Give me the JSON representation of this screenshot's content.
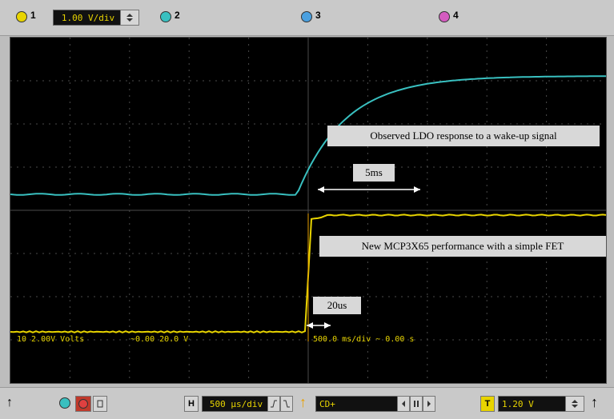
{
  "toolbar": {
    "ch1_scale": "1.00 V/div",
    "ch1_num": "1",
    "ch2_num": "2",
    "ch3_num": "3",
    "ch4_num": "4"
  },
  "screen": {
    "annotation_top": "Observed LDO response to a wake-up signal",
    "annotation_bottom": "New MCP3X65 performance with a simple FET",
    "span_long": "5ms",
    "span_short": "20us",
    "status_left": "10 2.00V Volts",
    "status_mid": "~0.00 20.0 V",
    "status_right": "500.0 ms/div ~ 0.00 s"
  },
  "bottom": {
    "horiz_label": "H",
    "timebase": "500 µs/div",
    "trigger_source": "CD+",
    "trigger_level_label": "T",
    "trigger_level": "1.20 V"
  },
  "colors": {
    "cyan_trace": "#39c0c0",
    "yellow_trace": "#e8d400",
    "grid": "#4a4a4a"
  }
}
